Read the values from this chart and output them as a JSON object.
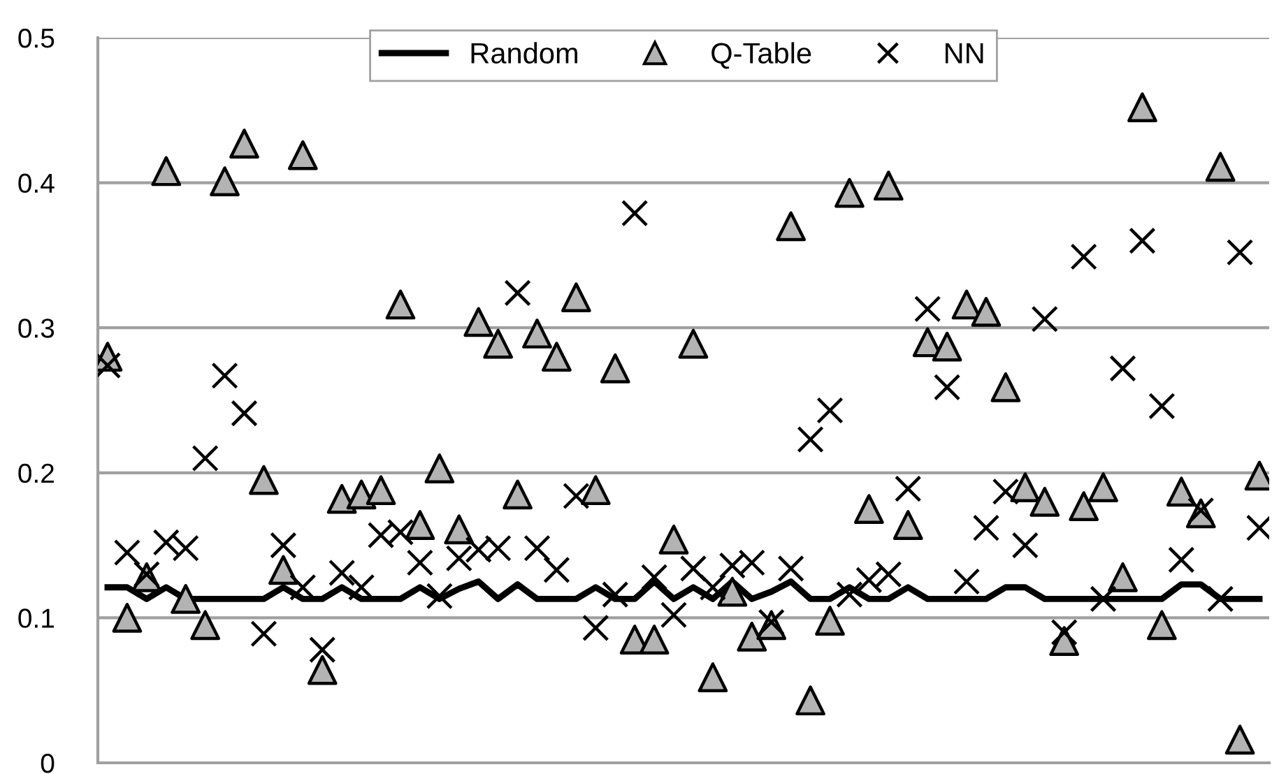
{
  "chart_data": {
    "type": "line",
    "categories": [
      null,
      null,
      null,
      null,
      null,
      null,
      null,
      null,
      null,
      null,
      null,
      null,
      null,
      null,
      null,
      null,
      null,
      null,
      null,
      null,
      null,
      null,
      null,
      null,
      null,
      null,
      null,
      null,
      null,
      null,
      null,
      null,
      null,
      null,
      null,
      null,
      null,
      null,
      null,
      null,
      null,
      null,
      null,
      null,
      null,
      null,
      null,
      null,
      null,
      null,
      null,
      null,
      null,
      null,
      null,
      null,
      null,
      null,
      null,
      null
    ],
    "ylim": [
      0,
      0.5
    ],
    "yticks": [
      0,
      0.1,
      0.2,
      0.3,
      0.4,
      0.5
    ],
    "grid": "y",
    "legend": "top",
    "tick_labels": "y",
    "series": [
      {
        "name": "Random",
        "color": "#000000",
        "marker": "none",
        "line_style": "solid",
        "values": [
          0.121,
          0.121,
          0.113,
          0.121,
          0.113,
          0.113,
          0.113,
          0.113,
          0.113,
          0.121,
          0.113,
          0.113,
          0.121,
          0.113,
          0.113,
          0.113,
          0.121,
          0.113,
          0.12,
          0.125,
          0.113,
          0.123,
          0.113,
          0.113,
          0.113,
          0.121,
          0.113,
          0.113,
          0.125,
          0.113,
          0.121,
          0.113,
          0.125,
          0.113,
          0.118,
          0.125,
          0.113,
          0.113,
          0.121,
          0.113,
          0.113,
          0.121,
          0.113,
          0.113,
          0.113,
          0.113,
          0.121,
          0.121,
          0.113,
          0.113,
          0.113,
          0.113,
          0.113,
          0.113,
          0.113,
          0.123,
          0.123,
          0.113,
          0.113,
          0.113
        ]
      },
      {
        "name": "Q-Table",
        "type": "scatter",
        "color": "#b3b3b3",
        "marker": "triangle",
        "values": [
          0.28,
          0.1,
          0.128,
          0.408,
          0.113,
          0.095,
          0.401,
          0.427,
          0.195,
          0.133,
          0.419,
          0.064,
          0.182,
          0.185,
          0.188,
          0.316,
          0.164,
          0.203,
          0.161,
          0.304,
          0.289,
          0.185,
          0.296,
          0.28,
          0.321,
          0.188,
          0.272,
          0.085,
          0.085,
          0.154,
          0.289,
          0.059,
          0.118,
          0.087,
          0.095,
          0.37,
          0.043,
          0.098,
          0.393,
          0.175,
          0.398,
          0.164,
          0.29,
          0.287,
          0.316,
          0.311,
          0.259,
          0.19,
          0.18,
          0.084,
          0.177,
          0.19,
          0.128,
          0.452,
          0.095,
          0.187,
          0.172,
          0.411,
          0.016,
          0.198
        ]
      },
      {
        "name": "NN",
        "type": "scatter",
        "color": "#000000",
        "marker": "cross",
        "values": [
          0.274,
          0.145,
          0.13,
          0.152,
          0.148,
          0.21,
          0.267,
          0.241,
          0.089,
          0.15,
          0.121,
          0.078,
          0.131,
          0.121,
          0.157,
          0.159,
          0.138,
          0.115,
          0.141,
          0.147,
          0.148,
          0.324,
          0.148,
          0.133,
          0.184,
          0.093,
          0.116,
          0.379,
          0.128,
          0.102,
          0.134,
          0.121,
          0.136,
          0.138,
          0.097,
          0.134,
          0.223,
          0.243,
          0.116,
          0.126,
          0.13,
          0.189,
          0.313,
          0.259,
          0.125,
          0.162,
          0.187,
          0.15,
          0.306,
          0.09,
          0.349,
          0.113,
          0.272,
          0.36,
          0.246,
          0.14,
          0.174,
          0.113,
          0.352,
          0.162
        ]
      }
    ]
  }
}
